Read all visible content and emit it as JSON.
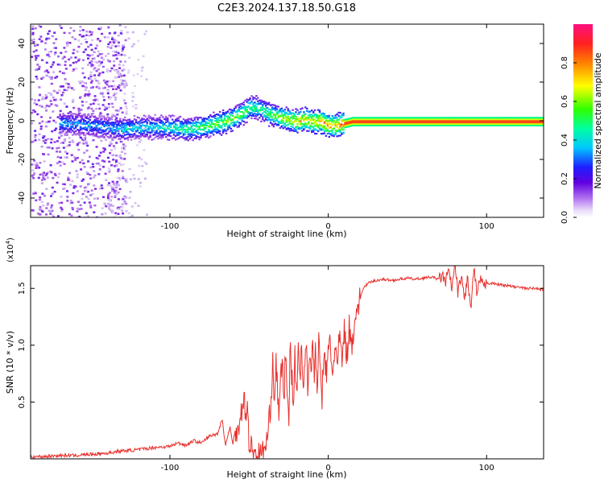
{
  "figure_title": "C2E3.2024.137.18.50.G18",
  "chart_data": [
    {
      "type": "heatmap",
      "xlabel": "Height of straight line (km)",
      "ylabel": "Frequency (Hz)",
      "xlim": [
        -188,
        136
      ],
      "ylim": [
        -50,
        50
      ],
      "x_ticks": [
        -100,
        0,
        100
      ],
      "x_tick_labels": [
        "-100",
        "0",
        "100"
      ],
      "y_ticks": [
        -40,
        -20,
        0,
        20,
        40
      ],
      "y_tick_labels": [
        "-40",
        "-20",
        "0",
        "20",
        "40"
      ],
      "grid": false,
      "colorbar": {
        "label": "Normalized spectral amplitude",
        "range": [
          0,
          1
        ],
        "ticks": [
          0.0,
          0.2,
          0.4,
          0.6,
          0.8
        ],
        "tick_labels": [
          "0.0",
          "0.2",
          "0.4",
          "0.6",
          "0.8"
        ],
        "colormap": [
          "#ffffff",
          "#cdb4f0",
          "#8a2be2",
          "#2020ff",
          "#00c8ff",
          "#00ff80",
          "#40ff00",
          "#ffff00",
          "#ff8000",
          "#ff2020",
          "#ff1080"
        ]
      },
      "ridge": {
        "x": [
          -165,
          -150,
          -140,
          -130,
          -120,
          -110,
          -100,
          -90,
          -80,
          -70,
          -62,
          -55,
          -50,
          -46,
          -42,
          -38,
          -34,
          -30,
          -25,
          -20,
          -15,
          -10,
          -5,
          0,
          5,
          10,
          15,
          20,
          60,
          100,
          136
        ],
        "frequency": [
          -1,
          -2,
          -3,
          -4,
          -3,
          -3,
          -3,
          -4,
          -3,
          -1,
          1,
          4,
          7,
          7,
          6,
          4,
          3,
          2,
          1,
          0,
          1,
          0,
          0,
          -2,
          -2,
          -1,
          0,
          0,
          0,
          0,
          0
        ],
        "amplitude": [
          0.45,
          0.45,
          0.45,
          0.5,
          0.5,
          0.5,
          0.55,
          0.6,
          0.65,
          0.7,
          0.7,
          0.7,
          0.65,
          0.6,
          0.6,
          0.65,
          0.7,
          0.75,
          0.8,
          0.85,
          0.85,
          0.85,
          0.9,
          0.9,
          0.9,
          0.95,
          0.95,
          0.95,
          0.95,
          0.95,
          0.95
        ]
      }
    },
    {
      "type": "line",
      "xlabel": "Height of straight line (km)",
      "ylabel": "SNR (10 * v/v)",
      "y_scale_label": "(x10",
      "y_scale_exponent": "4",
      "y_scale_close": ")",
      "xlim": [
        -188,
        136
      ],
      "ylim": [
        0,
        1.7
      ],
      "x_ticks": [
        -100,
        0,
        100
      ],
      "x_tick_labels": [
        "-100",
        "0",
        "100"
      ],
      "y_ticks": [
        0.5,
        1.0,
        1.5
      ],
      "y_tick_labels": [
        "0.5",
        "1.0",
        "1.5"
      ],
      "grid": false,
      "series": [
        {
          "color": "#e8302c",
          "x": [
            -188,
            -180,
            -170,
            -160,
            -150,
            -140,
            -130,
            -120,
            -110,
            -100,
            -95,
            -90,
            -85,
            -80,
            -75,
            -70,
            -67,
            -65,
            -62,
            -60,
            -58,
            -55,
            -53,
            -52,
            -51,
            -50,
            -48,
            -46,
            -44,
            -42,
            -40,
            -38,
            -36,
            -35,
            -34,
            -33,
            -32,
            -31,
            -30,
            -29,
            -28,
            -27,
            -26,
            -25,
            -24,
            -23,
            -22,
            -21,
            -20,
            -19,
            -18,
            -17,
            -16,
            -15,
            -14,
            -13,
            -12,
            -11,
            -10,
            -9,
            -8,
            -7,
            -6,
            -5,
            -4,
            -3,
            -2,
            -1,
            0,
            1,
            2,
            3,
            4,
            5,
            6,
            7,
            8,
            9,
            10,
            11,
            12,
            13,
            14,
            15,
            16,
            17,
            18,
            19,
            20,
            21,
            22,
            24,
            26,
            28,
            30,
            35,
            40,
            45,
            50,
            55,
            60,
            65,
            70,
            72,
            74,
            76,
            78,
            80,
            82,
            84,
            86,
            88,
            90,
            92,
            94,
            96,
            98,
            100,
            105,
            110,
            115,
            120,
            125,
            130,
            136
          ],
          "y": [
            0.02,
            0.02,
            0.03,
            0.03,
            0.04,
            0.05,
            0.07,
            0.08,
            0.1,
            0.11,
            0.14,
            0.12,
            0.16,
            0.14,
            0.2,
            0.22,
            0.35,
            0.12,
            0.28,
            0.1,
            0.25,
            0.4,
            0.58,
            0.3,
            0.45,
            0.15,
            0.08,
            0.04,
            0.03,
            0.05,
            0.08,
            0.22,
            0.55,
            0.95,
            0.4,
            0.9,
            0.6,
            0.35,
            0.7,
            0.85,
            0.5,
            0.95,
            0.6,
            0.3,
            1.0,
            0.7,
            0.55,
            0.9,
            0.5,
            1.05,
            0.7,
            0.95,
            0.6,
            0.8,
            1.1,
            0.65,
            0.9,
            0.75,
            1.05,
            0.7,
            0.95,
            0.6,
            1.0,
            0.8,
            0.5,
            0.9,
            0.85,
            0.7,
            0.95,
            1.05,
            0.85,
            0.75,
            1.0,
            0.9,
            0.8,
            1.1,
            0.95,
            0.85,
            1.15,
            1.0,
            0.9,
            1.2,
            1.05,
            1.0,
            1.15,
            1.3,
            1.28,
            1.35,
            1.4,
            1.45,
            1.5,
            1.53,
            1.55,
            1.56,
            1.57,
            1.58,
            1.57,
            1.58,
            1.59,
            1.58,
            1.59,
            1.6,
            1.58,
            1.62,
            1.55,
            1.66,
            1.5,
            1.7,
            1.45,
            1.62,
            1.4,
            1.6,
            1.3,
            1.68,
            1.42,
            1.6,
            1.5,
            1.55,
            1.54,
            1.53,
            1.52,
            1.51,
            1.5,
            1.5,
            1.49
          ]
        }
      ]
    }
  ]
}
